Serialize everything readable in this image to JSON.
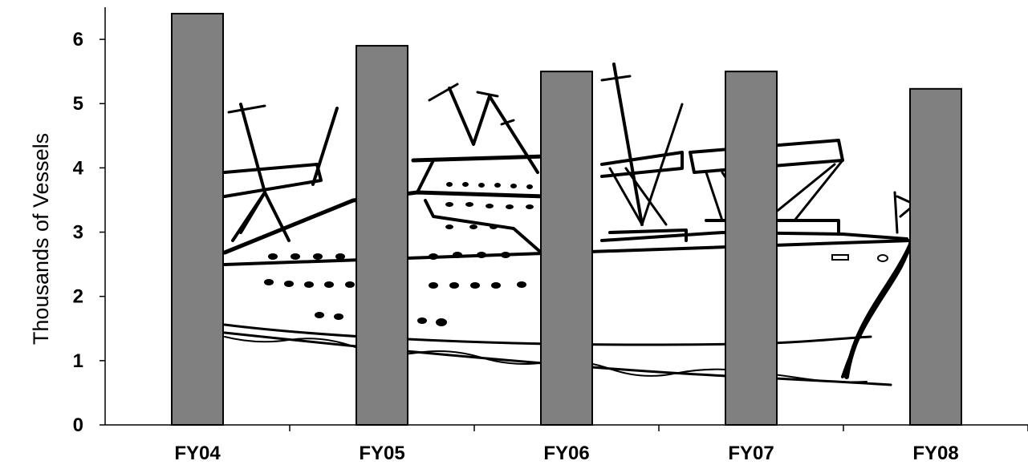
{
  "chart_data": {
    "type": "bar",
    "title": "",
    "xlabel": "",
    "ylabel": "Thousands of Vessels",
    "categories": [
      "FY04",
      "FY05",
      "FY06",
      "FY07",
      "FY08"
    ],
    "values": [
      6.4,
      5.9,
      5.5,
      5.5,
      5.23
    ],
    "ylim": [
      0,
      6.5
    ],
    "yticks": [
      "0",
      "1",
      "2",
      "3",
      "4",
      "5",
      "6"
    ],
    "bar_color": "#808080",
    "grid": false,
    "legend": "none",
    "background_image": "cruise-ship-line-drawing"
  }
}
